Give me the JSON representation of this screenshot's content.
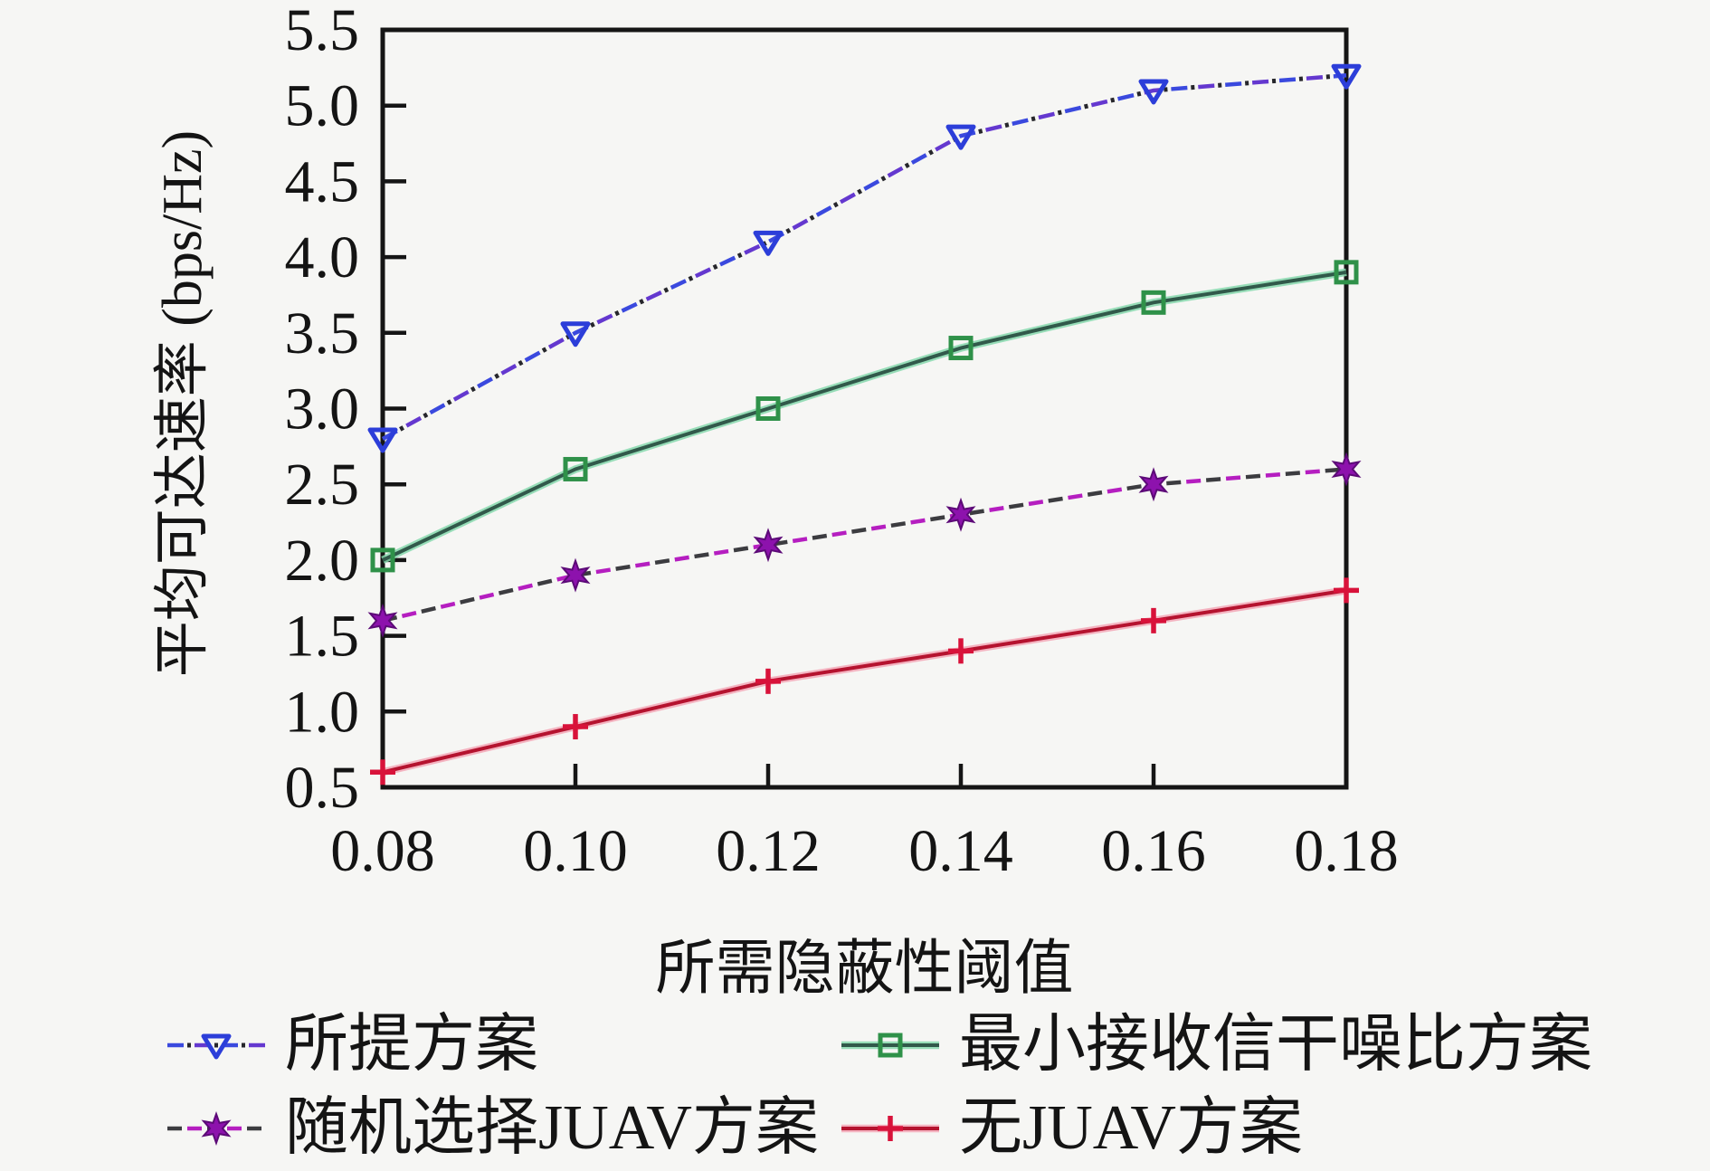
{
  "figure": {
    "background": "#f6f6f4",
    "text_color": "#141414",
    "axis_color": "#151515"
  },
  "chart_data": {
    "type": "line",
    "title": "",
    "xlabel": "所需隐蔽性阈值",
    "ylabel": "平均可达速率 (bps/Hz)",
    "xlim": [
      0.08,
      0.18
    ],
    "ylim": [
      0.5,
      5.5
    ],
    "grid": false,
    "legend_position": "below-two-columns",
    "x": [
      0.08,
      0.1,
      0.12,
      0.14,
      0.16,
      0.18
    ],
    "x_tick_labels": [
      "0.08",
      "0.10",
      "0.12",
      "0.14",
      "0.16",
      "0.18"
    ],
    "y_tick_labels": [
      "0.5",
      "1.0",
      "1.5",
      "2.0",
      "2.5",
      "3.0",
      "3.5",
      "4.0",
      "4.5",
      "5.0",
      "5.5"
    ],
    "series": [
      {
        "name": "所提方案",
        "values": [
          2.8,
          3.5,
          4.1,
          4.8,
          5.1,
          5.2
        ],
        "line_style": "dash-dot",
        "marker": "triangle-down",
        "line_color": "#3a49de",
        "line_color2": "#6438cf",
        "dot_color": "#26262b",
        "marker_color": "#2c3ed9"
      },
      {
        "name": "最小接收信干噪比方案",
        "values": [
          2.0,
          2.6,
          3.0,
          3.4,
          3.7,
          3.9
        ],
        "line_style": "solid",
        "marker": "square",
        "line_color": "#31594a",
        "glow_color": "#86d8ad",
        "glow_opacity": 0.85,
        "marker_color": "#2f9149"
      },
      {
        "name": "随机选择JUAV方案",
        "values": [
          1.6,
          1.9,
          2.1,
          2.3,
          2.5,
          2.6
        ],
        "line_style": "dashed",
        "marker": "star6",
        "line_color": "#3c3c40",
        "line_color2": "#b51ec0",
        "marker_color": "#8d12ad",
        "marker_edge": "#5c0a77"
      },
      {
        "name": "无JUAV方案",
        "values": [
          0.6,
          0.9,
          1.2,
          1.4,
          1.6,
          1.8
        ],
        "line_style": "solid",
        "marker": "plus",
        "line_color": "#b5132f",
        "glow_color": "#f27c95",
        "glow_opacity": 0.55,
        "marker_color": "#d8123a"
      }
    ]
  }
}
